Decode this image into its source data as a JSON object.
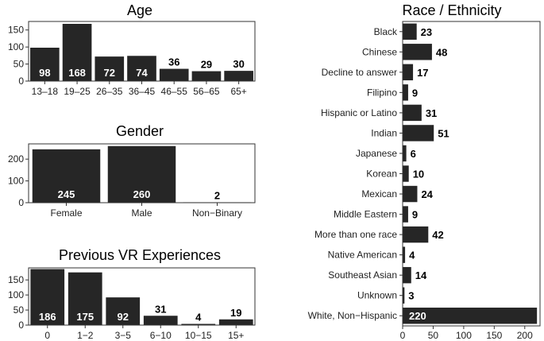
{
  "chart_data": [
    {
      "type": "bar",
      "title": "Age",
      "categories": [
        "13–18",
        "19–25",
        "26–35",
        "36–45",
        "46–55",
        "56–65",
        "65+"
      ],
      "values": [
        98,
        168,
        72,
        74,
        36,
        29,
        30
      ],
      "ylim": [
        0,
        175
      ],
      "yticks": [
        0,
        50,
        100,
        150
      ],
      "orientation": "vertical",
      "bar_color": "#262626"
    },
    {
      "type": "bar",
      "title": "Gender",
      "categories": [
        "Female",
        "Male",
        "Non−Binary"
      ],
      "values": [
        245,
        260,
        2
      ],
      "ylim": [
        0,
        270
      ],
      "yticks": [
        0,
        100,
        200
      ],
      "orientation": "vertical",
      "bar_color": "#262626"
    },
    {
      "type": "bar",
      "title": "Previous VR Experiences",
      "categories": [
        "0",
        "1−2",
        "3−5",
        "6−10",
        "10−15",
        "15+"
      ],
      "values": [
        186,
        175,
        92,
        31,
        4,
        19
      ],
      "ylim": [
        0,
        190
      ],
      "yticks": [
        0,
        50,
        100,
        150
      ],
      "orientation": "vertical",
      "bar_color": "#262626"
    },
    {
      "type": "bar",
      "title": "Race / Ethnicity",
      "categories": [
        "Black",
        "Chinese",
        "Decline to answer",
        "Filipino",
        "Hispanic or Latino",
        "Indian",
        "Japanese",
        "Korean",
        "Mexican",
        "Middle Eastern",
        "More than one race",
        "Native American",
        "Southeast Asian",
        "Unknown",
        "White, Non−Hispanic"
      ],
      "values": [
        23,
        48,
        17,
        9,
        31,
        51,
        6,
        10,
        24,
        9,
        42,
        4,
        14,
        3,
        220
      ],
      "xlim": [
        0,
        225
      ],
      "xticks": [
        0,
        50,
        100,
        150,
        200
      ],
      "orientation": "horizontal",
      "bar_color": "#262626"
    }
  ]
}
